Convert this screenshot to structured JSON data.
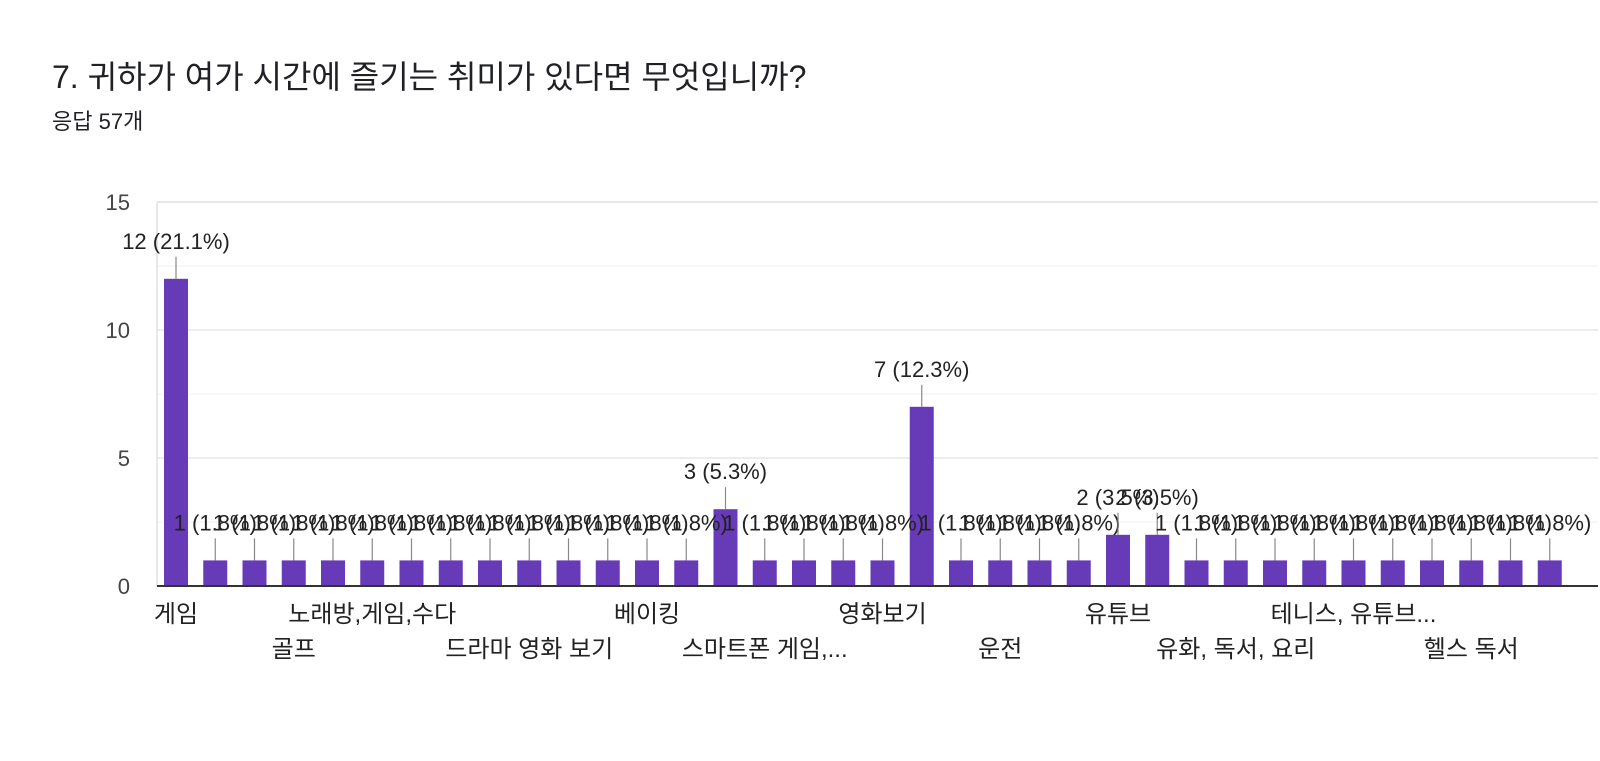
{
  "question": {
    "title": "7. 귀하가 여가 시간에 즐기는 취미가 있다면 무엇입니까?",
    "response_count": "응답 57개"
  },
  "chart_data": {
    "type": "bar",
    "title": "7. 귀하가 여가 시간에 즐기는 취미가 있다면 무엇입니까?",
    "xlabel": "",
    "ylabel": "",
    "ylim": [
      0,
      15
    ],
    "yticks": [
      0,
      5,
      10,
      15
    ],
    "grid": true,
    "bar_color": "#673ab7",
    "values": [
      12,
      1,
      1,
      1,
      1,
      1,
      1,
      1,
      1,
      1,
      1,
      1,
      1,
      1,
      3,
      1,
      1,
      1,
      1,
      7,
      1,
      1,
      1,
      1,
      2,
      2,
      1,
      1,
      1,
      1,
      1,
      1,
      1,
      1,
      1,
      1
    ],
    "visible_category_labels": [
      {
        "index": 0,
        "text": "게임"
      },
      {
        "index": 3,
        "text": "골프"
      },
      {
        "index": 5,
        "text": "노래방,게임,수다"
      },
      {
        "index": 9,
        "text": "드라마 영화 보기"
      },
      {
        "index": 12,
        "text": "베이킹"
      },
      {
        "index": 15,
        "text": "스마트폰 게임,..."
      },
      {
        "index": 18,
        "text": "영화보기"
      },
      {
        "index": 21,
        "text": "운전"
      },
      {
        "index": 24,
        "text": "유튜브"
      },
      {
        "index": 27,
        "text": "유화, 독서, 요리"
      },
      {
        "index": 30,
        "text": "테니스, 유튜브..."
      },
      {
        "index": 33,
        "text": "헬스 독서"
      }
    ],
    "data_labels": [
      {
        "index": 0,
        "text": "12 (21.1%)"
      },
      {
        "index": 14,
        "text": "3 (5.3%)"
      },
      {
        "index": 19,
        "text": "7 (12.3%)"
      },
      {
        "index": 24,
        "text": "2 (3.5%)"
      },
      {
        "index": 25,
        "text": "2 (3.5%)"
      }
    ],
    "single_label": "1 (1.8%)"
  }
}
